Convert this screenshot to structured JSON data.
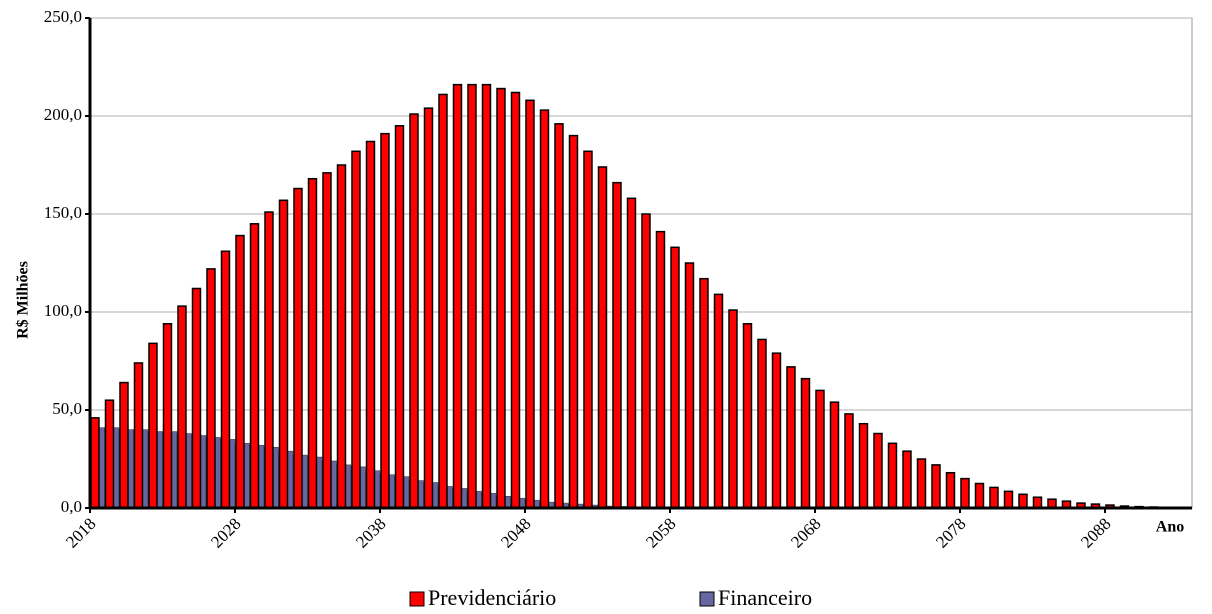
{
  "chart_data": {
    "type": "bar",
    "y_label": "R$ Milhões",
    "x_label": "Ano",
    "x": [
      2018,
      2019,
      2020,
      2021,
      2022,
      2023,
      2024,
      2025,
      2026,
      2027,
      2028,
      2029,
      2030,
      2031,
      2032,
      2033,
      2034,
      2035,
      2036,
      2037,
      2038,
      2039,
      2040,
      2041,
      2042,
      2043,
      2044,
      2045,
      2046,
      2047,
      2048,
      2049,
      2050,
      2051,
      2052,
      2053,
      2054,
      2055,
      2056,
      2057,
      2058,
      2059,
      2060,
      2061,
      2062,
      2063,
      2064,
      2065,
      2066,
      2067,
      2068,
      2069,
      2070,
      2071,
      2072,
      2073,
      2074,
      2075,
      2076,
      2077,
      2078,
      2079,
      2080,
      2081,
      2082,
      2083,
      2084,
      2085,
      2086,
      2087,
      2088,
      2089,
      2090,
      2091,
      2092,
      2093
    ],
    "xlim": [
      2018,
      2094
    ],
    "xticks": [
      2018,
      2028,
      2038,
      2048,
      2058,
      2068,
      2078,
      2088
    ],
    "ylim": [
      0,
      250
    ],
    "yticks": [
      {
        "value": 0,
        "label": "0,0"
      },
      {
        "value": 50,
        "label": "50,0"
      },
      {
        "value": 100,
        "label": "100,0"
      },
      {
        "value": 150,
        "label": "150,0"
      },
      {
        "value": 200,
        "label": "200,0"
      },
      {
        "value": 250,
        "label": "250,0"
      }
    ],
    "grid": true,
    "legend": "bottom",
    "series": [
      {
        "name": "Previdenciário",
        "color": "#ff0000",
        "values": [
          46,
          55,
          64,
          74,
          84,
          94,
          103,
          112,
          122,
          131,
          139,
          145,
          151,
          157,
          163,
          168,
          171,
          175,
          182,
          187,
          191,
          195,
          201,
          204,
          211,
          216,
          216,
          216,
          214,
          212,
          208,
          203,
          196,
          190,
          182,
          174,
          166,
          158,
          150,
          141,
          133,
          125,
          117,
          109,
          101,
          94,
          86,
          79,
          72,
          66,
          60,
          54,
          48,
          43,
          38,
          33,
          29,
          25,
          22,
          18,
          15,
          12.5,
          10.5,
          8.5,
          7,
          5.5,
          4.5,
          3.5,
          2.5,
          2,
          1.5,
          1,
          0.7,
          0.5,
          0.3,
          0.2
        ]
      },
      {
        "name": "Financeiro",
        "color": "#6666a0",
        "values": [
          41,
          41,
          40,
          40,
          39,
          39,
          38,
          37,
          36,
          35,
          33,
          32,
          31,
          29,
          27,
          26,
          24,
          22,
          21,
          19,
          17,
          16,
          14,
          13,
          11,
          10,
          8.5,
          7.5,
          6,
          5,
          4,
          3,
          2.5,
          2,
          1.5,
          1,
          0.8,
          0.6,
          0.4,
          0.3,
          0.2,
          0.1,
          0,
          0,
          0,
          0,
          0,
          0,
          0,
          0,
          0,
          0,
          0,
          0,
          0,
          0,
          0,
          0,
          0,
          0,
          0,
          0,
          0,
          0,
          0,
          0,
          0,
          0,
          0,
          0,
          0,
          0,
          0,
          0,
          0,
          0
        ]
      }
    ]
  }
}
